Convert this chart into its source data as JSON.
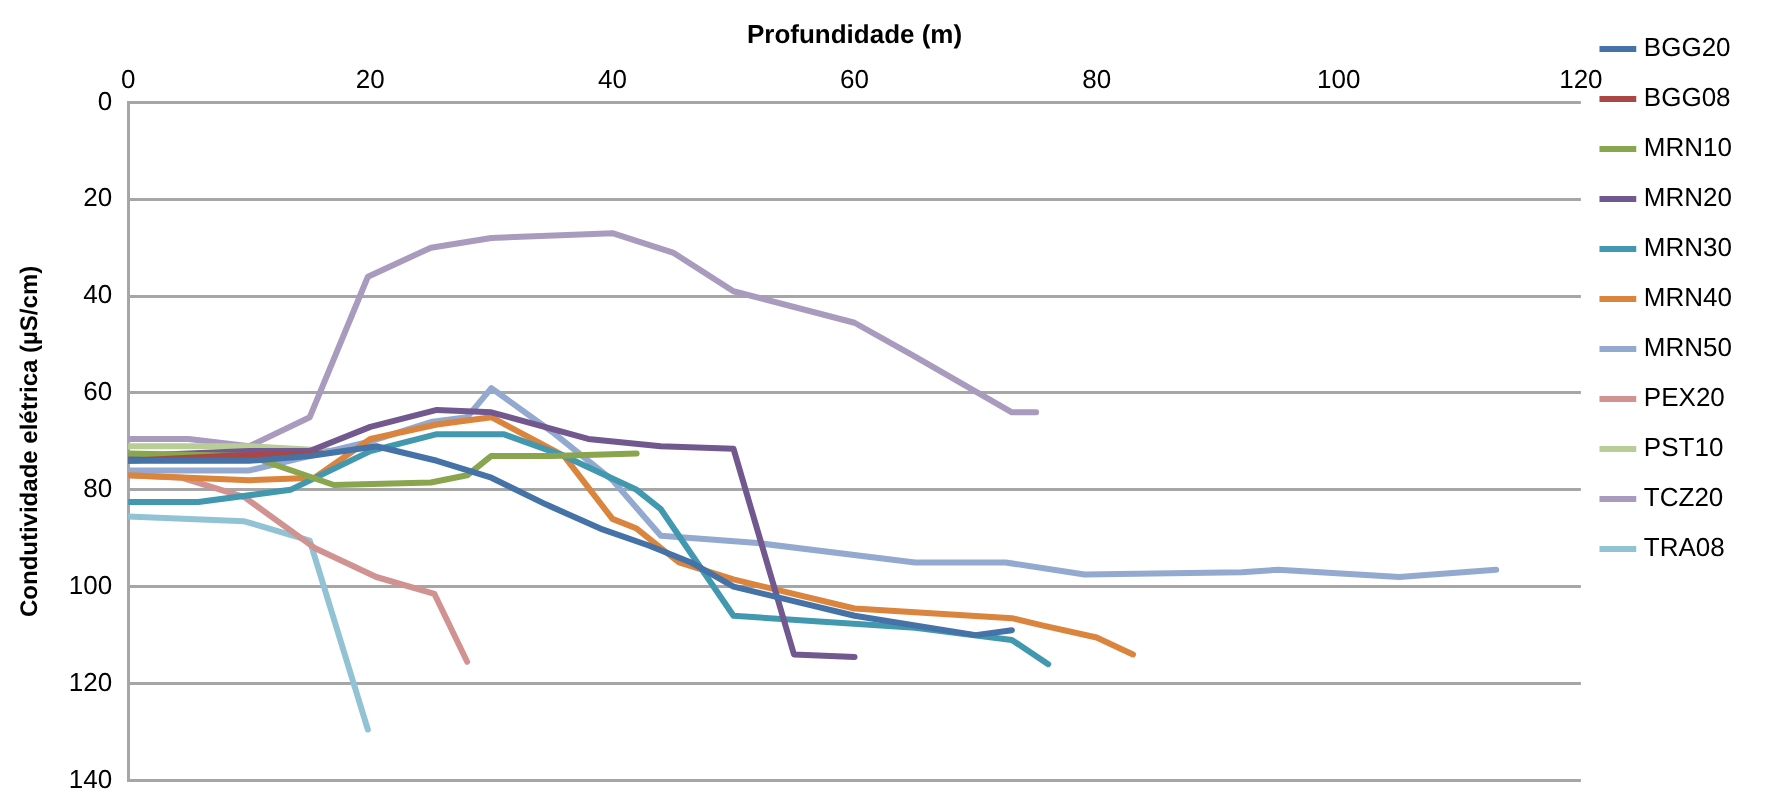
{
  "chart_data": {
    "type": "line",
    "xlabel": "Profundidade (m)",
    "ylabel": "Condutividade elétrica (µS/cm)",
    "xlim": [
      0,
      120
    ],
    "xticks": [
      0,
      20,
      40,
      60,
      80,
      100,
      120
    ],
    "ylim": [
      140,
      0
    ],
    "yticks": [
      0,
      20,
      40,
      60,
      80,
      100,
      120,
      140
    ],
    "grid": "y",
    "legend": "right",
    "marker": "none",
    "line_style": "solid",
    "series": [
      {
        "name": "BGG20",
        "color": "#4572a7",
        "x": [
          0,
          10,
          15,
          20.5,
          25.5,
          30,
          34.5,
          39,
          43,
          46.5,
          50,
          60,
          70,
          73
        ],
        "values": [
          74,
          74,
          73,
          71,
          74,
          77.5,
          83,
          88,
          91.5,
          95,
          100,
          106,
          110,
          109
        ]
      },
      {
        "name": "BGG08",
        "color": "#aa4643",
        "x": [
          0,
          8,
          16
        ],
        "values": [
          74,
          73,
          72.5
        ]
      },
      {
        "name": "MRN10",
        "color": "#89a54e",
        "x": [
          0,
          10,
          17,
          25,
          28,
          30,
          35,
          42
        ],
        "values": [
          72.5,
          73,
          79,
          78.5,
          77,
          73,
          73,
          72.5
        ]
      },
      {
        "name": "MRN20",
        "color": "#71588f",
        "x": [
          0,
          10,
          15,
          20,
          25.5,
          30,
          38,
          44,
          50,
          55,
          60
        ],
        "values": [
          73,
          72,
          72,
          67,
          63.5,
          64,
          69.5,
          71,
          71.5,
          114,
          114.5
        ]
      },
      {
        "name": "MRN30",
        "color": "#4198af",
        "x": [
          0,
          5.8,
          13.4,
          20,
          25.5,
          31,
          36,
          42,
          44,
          50,
          65,
          73,
          76
        ],
        "values": [
          82.5,
          82.5,
          80,
          72,
          68.5,
          68.5,
          73,
          80,
          84,
          106,
          108.5,
          111,
          116
        ]
      },
      {
        "name": "MRN40",
        "color": "#db843d",
        "x": [
          0,
          10,
          15.4,
          20,
          25.5,
          30,
          36,
          40,
          42,
          45.5,
          50,
          60,
          73,
          75.5,
          80,
          83
        ],
        "values": [
          77,
          78,
          77.5,
          69.5,
          66.5,
          65,
          73,
          86,
          88,
          95,
          98.5,
          104.5,
          106.5,
          108,
          110.5,
          114
        ]
      },
      {
        "name": "MRN50",
        "color": "#93a9cf",
        "x": [
          0,
          10,
          20,
          25,
          28,
          30,
          35,
          40,
          44,
          52,
          65,
          72.5,
          79,
          92,
          95,
          105,
          113
        ],
        "values": [
          76,
          76,
          70,
          66,
          65,
          59,
          68,
          78,
          89.5,
          91,
          95,
          95,
          97.5,
          97,
          96.5,
          98,
          96.5
        ]
      },
      {
        "name": "PEX20",
        "color": "#d19392",
        "x": [
          0,
          4.4,
          9.6,
          15.4,
          20.5,
          25.3,
          28
        ],
        "values": [
          77,
          77.5,
          81.5,
          92,
          98,
          101.5,
          115.5
        ]
      },
      {
        "name": "PST10",
        "color": "#b9cd96",
        "x": [
          0,
          10,
          17
        ],
        "values": [
          71,
          71,
          72
        ]
      },
      {
        "name": "TCZ20",
        "color": "#a99bbd",
        "x": [
          0,
          5,
          10,
          15,
          19.8,
          25,
          30,
          40,
          45,
          50,
          60,
          65,
          73,
          75
        ],
        "values": [
          69.5,
          69.5,
          71,
          65,
          36,
          30,
          28,
          27,
          31,
          39,
          45.5,
          52.5,
          64,
          64
        ]
      },
      {
        "name": "TRA08",
        "color": "#92c3d4",
        "x": [
          0,
          9.6,
          15,
          19.8
        ],
        "values": [
          85.5,
          86.5,
          90.5,
          129.5
        ]
      }
    ]
  }
}
